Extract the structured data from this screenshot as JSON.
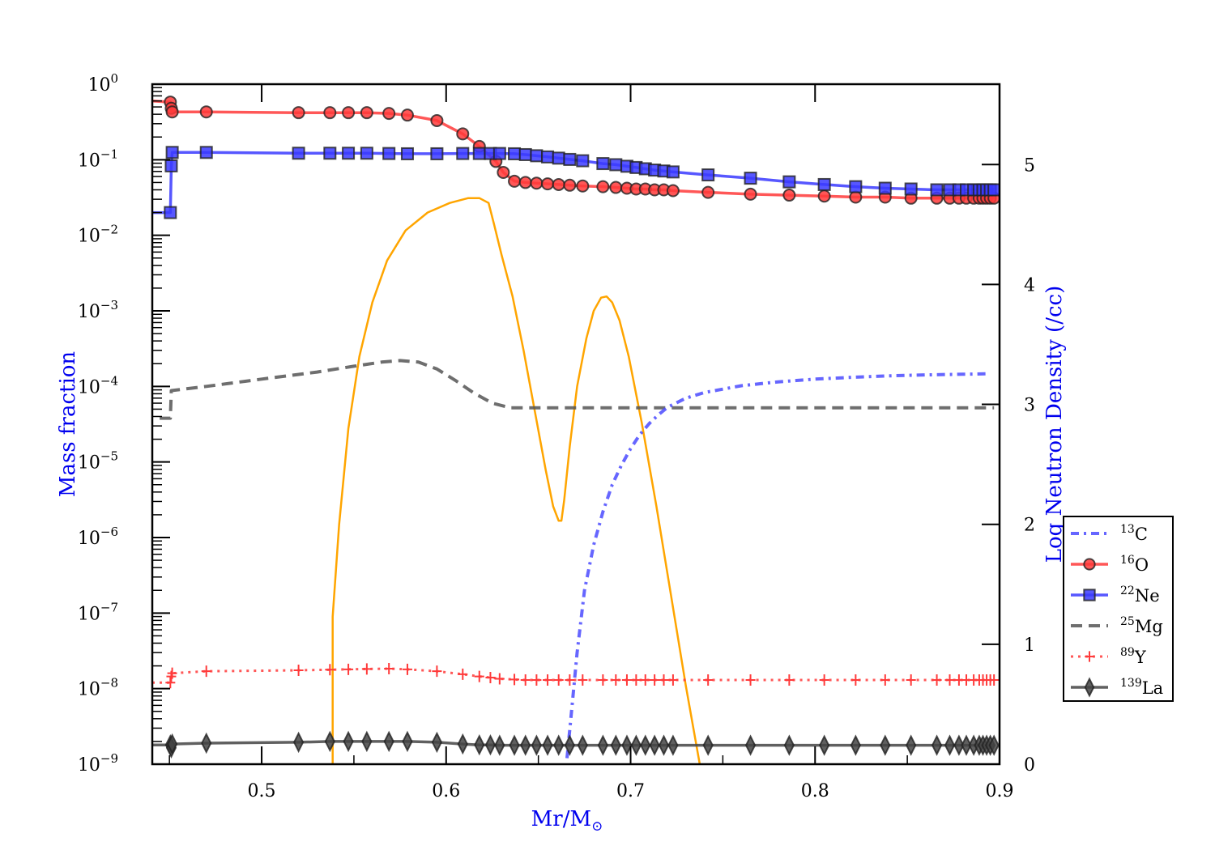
{
  "chart_data": {
    "type": "line",
    "title": "",
    "xlabel": "Mr/M",
    "xlabel_subscript": "⊙",
    "ylabel": "Mass fraction",
    "y2label": "Log Neutron Density (/cc)",
    "xlim": [
      0.4407,
      0.9
    ],
    "ylim": [
      1e-09,
      1
    ],
    "yscale": "log",
    "y2lim": [
      0,
      5.67
    ],
    "grid": false,
    "legend_position": "right",
    "x_ticks": [
      {
        "value": 0.5,
        "label": "0.5"
      },
      {
        "value": 0.6,
        "label": "0.6"
      },
      {
        "value": 0.7,
        "label": "0.7"
      },
      {
        "value": 0.8,
        "label": "0.8"
      },
      {
        "value": 0.9,
        "label": "0.9"
      }
    ],
    "y_ticks": [
      {
        "exp": 0,
        "base": "10",
        "sup": "0"
      },
      {
        "exp": -1,
        "base": "10",
        "sup": "−1"
      },
      {
        "exp": -2,
        "base": "10",
        "sup": "−2"
      },
      {
        "exp": -3,
        "base": "10",
        "sup": "−3"
      },
      {
        "exp": -4,
        "base": "10",
        "sup": "−4"
      },
      {
        "exp": -5,
        "base": "10",
        "sup": "−5"
      },
      {
        "exp": -6,
        "base": "10",
        "sup": "−6"
      },
      {
        "exp": -7,
        "base": "10",
        "sup": "−7"
      },
      {
        "exp": -8,
        "base": "10",
        "sup": "−8"
      },
      {
        "exp": -9,
        "base": "10",
        "sup": "−9"
      }
    ],
    "y2_ticks": [
      {
        "value": 0,
        "label": "0"
      },
      {
        "value": 1,
        "label": "1"
      },
      {
        "value": 2,
        "label": "2"
      },
      {
        "value": 3,
        "label": "3"
      },
      {
        "value": 4,
        "label": "4"
      },
      {
        "value": 5,
        "label": "5"
      }
    ],
    "series": [
      {
        "name": "13C",
        "mass": "13",
        "element": "C",
        "color": "#4b4bff",
        "style": "dashdot",
        "marker": "none",
        "axis": "left",
        "x": [
          0.6655,
          0.668,
          0.671,
          0.675,
          0.68,
          0.685,
          0.69,
          0.695,
          0.7,
          0.705,
          0.71,
          0.715,
          0.72,
          0.73,
          0.74,
          0.76,
          0.78,
          0.8,
          0.82,
          0.84,
          0.86,
          0.88,
          0.895
        ],
        "y": [
          1.2e-09,
          5e-09,
          3e-08,
          2e-07,
          8e-07,
          2.2e-06,
          5e-06,
          9e-06,
          1.5e-05,
          2.3e-05,
          3.2e-05,
          4.2e-05,
          5.3e-05,
          7e-05,
          8.3e-05,
          0.000102,
          0.000115,
          0.000125,
          0.000132,
          0.000138,
          0.000142,
          0.000145,
          0.000147
        ]
      },
      {
        "name": "16O",
        "mass": "16",
        "element": "O",
        "color": "#ff3a3a",
        "style": "solid",
        "marker": "circle",
        "axis": "left",
        "x": [
          0.4407,
          0.4505,
          0.451,
          0.4515,
          0.47,
          0.52,
          0.537,
          0.547,
          0.557,
          0.569,
          0.579,
          0.595,
          0.609,
          0.618,
          0.627,
          0.631,
          0.637,
          0.643,
          0.649,
          0.655,
          0.661,
          0.667,
          0.674,
          0.685,
          0.692,
          0.698,
          0.703,
          0.708,
          0.713,
          0.718,
          0.723,
          0.742,
          0.765,
          0.786,
          0.805,
          0.822,
          0.838,
          0.852,
          0.866,
          0.873,
          0.878,
          0.882,
          0.886,
          0.889,
          0.891,
          0.893,
          0.895,
          0.897
        ],
        "y": [
          0.6,
          0.58,
          0.48,
          0.43,
          0.43,
          0.42,
          0.42,
          0.42,
          0.42,
          0.41,
          0.39,
          0.33,
          0.22,
          0.15,
          0.095,
          0.068,
          0.052,
          0.05,
          0.049,
          0.048,
          0.047,
          0.046,
          0.045,
          0.044,
          0.043,
          0.042,
          0.041,
          0.041,
          0.04,
          0.04,
          0.039,
          0.037,
          0.035,
          0.034,
          0.033,
          0.032,
          0.032,
          0.031,
          0.031,
          0.031,
          0.031,
          0.031,
          0.031,
          0.031,
          0.031,
          0.031,
          0.031,
          0.031
        ]
      },
      {
        "name": "22Ne",
        "mass": "22",
        "element": "Ne",
        "color": "#3a3aff",
        "style": "solid",
        "marker": "square",
        "axis": "left",
        "x": [
          0.4407,
          0.4505,
          0.451,
          0.4515,
          0.47,
          0.52,
          0.537,
          0.547,
          0.557,
          0.569,
          0.579,
          0.595,
          0.609,
          0.618,
          0.624,
          0.629,
          0.637,
          0.643,
          0.649,
          0.655,
          0.661,
          0.667,
          0.674,
          0.685,
          0.692,
          0.698,
          0.703,
          0.708,
          0.713,
          0.718,
          0.723,
          0.742,
          0.765,
          0.786,
          0.805,
          0.822,
          0.838,
          0.852,
          0.866,
          0.873,
          0.878,
          0.882,
          0.886,
          0.889,
          0.891,
          0.893,
          0.895,
          0.897
        ],
        "y": [
          0.02,
          0.02,
          0.083,
          0.125,
          0.125,
          0.122,
          0.122,
          0.122,
          0.122,
          0.121,
          0.12,
          0.12,
          0.121,
          0.121,
          0.121,
          0.121,
          0.12,
          0.117,
          0.113,
          0.109,
          0.105,
          0.101,
          0.097,
          0.089,
          0.086,
          0.082,
          0.079,
          0.076,
          0.073,
          0.071,
          0.069,
          0.063,
          0.057,
          0.051,
          0.047,
          0.044,
          0.042,
          0.041,
          0.04,
          0.04,
          0.04,
          0.04,
          0.04,
          0.04,
          0.04,
          0.04,
          0.04,
          0.04
        ]
      },
      {
        "name": "25Mg",
        "mass": "25",
        "element": "Mg",
        "color": "#555555",
        "style": "dashed",
        "marker": "none",
        "axis": "left",
        "x": [
          0.4447,
          0.4505,
          0.451,
          0.47,
          0.5,
          0.53,
          0.55,
          0.565,
          0.575,
          0.585,
          0.595,
          0.605,
          0.615,
          0.625,
          0.635,
          0.65,
          0.7,
          0.75,
          0.8,
          0.85,
          0.897
        ],
        "y": [
          3.8e-05,
          3.8e-05,
          8.8e-05,
          0.0001,
          0.000125,
          0.000155,
          0.000185,
          0.00021,
          0.00022,
          0.00021,
          0.00017,
          0.00012,
          8.2e-05,
          6e-05,
          5.2e-05,
          5.2e-05,
          5.2e-05,
          5.2e-05,
          5.2e-05,
          5.2e-05,
          5.2e-05
        ]
      },
      {
        "name": "89Y",
        "mass": "89",
        "element": "Y",
        "color": "#ff3a3a",
        "style": "dotted",
        "marker": "plus",
        "axis": "left",
        "x": [
          0.4407,
          0.4505,
          0.451,
          0.4515,
          0.47,
          0.52,
          0.537,
          0.547,
          0.557,
          0.569,
          0.579,
          0.595,
          0.609,
          0.618,
          0.624,
          0.629,
          0.637,
          0.643,
          0.649,
          0.655,
          0.661,
          0.667,
          0.674,
          0.685,
          0.692,
          0.698,
          0.703,
          0.708,
          0.713,
          0.718,
          0.723,
          0.742,
          0.765,
          0.786,
          0.805,
          0.822,
          0.838,
          0.852,
          0.866,
          0.873,
          0.878,
          0.882,
          0.886,
          0.889,
          0.891,
          0.893,
          0.895,
          0.897
        ],
        "y": [
          1.2e-08,
          1.2e-08,
          1.45e-08,
          1.6e-08,
          1.7e-08,
          1.75e-08,
          1.78e-08,
          1.8e-08,
          1.82e-08,
          1.84e-08,
          1.8e-08,
          1.7e-08,
          1.55e-08,
          1.45e-08,
          1.4e-08,
          1.35e-08,
          1.32e-08,
          1.3e-08,
          1.3e-08,
          1.3e-08,
          1.3e-08,
          1.3e-08,
          1.3e-08,
          1.3e-08,
          1.3e-08,
          1.3e-08,
          1.3e-08,
          1.3e-08,
          1.3e-08,
          1.3e-08,
          1.3e-08,
          1.3e-08,
          1.3e-08,
          1.3e-08,
          1.3e-08,
          1.3e-08,
          1.3e-08,
          1.3e-08,
          1.3e-08,
          1.3e-08,
          1.3e-08,
          1.3e-08,
          1.3e-08,
          1.3e-08,
          1.3e-08,
          1.3e-08,
          1.3e-08,
          1.3e-08
        ]
      },
      {
        "name": "139La",
        "mass": "139",
        "element": "La",
        "color": "#444444",
        "style": "solid",
        "marker": "diamond",
        "axis": "left",
        "x": [
          0.4407,
          0.4505,
          0.451,
          0.4515,
          0.47,
          0.52,
          0.537,
          0.547,
          0.557,
          0.569,
          0.579,
          0.595,
          0.609,
          0.618,
          0.624,
          0.629,
          0.637,
          0.643,
          0.649,
          0.655,
          0.661,
          0.667,
          0.674,
          0.685,
          0.692,
          0.698,
          0.703,
          0.708,
          0.713,
          0.718,
          0.723,
          0.742,
          0.765,
          0.786,
          0.805,
          0.822,
          0.838,
          0.852,
          0.866,
          0.873,
          0.878,
          0.882,
          0.886,
          0.889,
          0.891,
          0.893,
          0.895,
          0.897
        ],
        "y": [
          1.8e-09,
          1.8e-09,
          1.65e-09,
          1.85e-09,
          1.9e-09,
          1.95e-09,
          2e-09,
          2e-09,
          2e-09,
          2e-09,
          2e-09,
          1.95e-09,
          1.85e-09,
          1.8e-09,
          1.8e-09,
          1.78e-09,
          1.78e-09,
          1.78e-09,
          1.78e-09,
          1.78e-09,
          1.78e-09,
          1.78e-09,
          1.78e-09,
          1.78e-09,
          1.78e-09,
          1.78e-09,
          1.78e-09,
          1.78e-09,
          1.78e-09,
          1.78e-09,
          1.78e-09,
          1.78e-09,
          1.78e-09,
          1.78e-09,
          1.78e-09,
          1.78e-09,
          1.78e-09,
          1.78e-09,
          1.78e-09,
          1.78e-09,
          1.78e-09,
          1.78e-09,
          1.78e-09,
          1.78e-09,
          1.78e-09,
          1.78e-09,
          1.78e-09,
          1.78e-09
        ]
      },
      {
        "name": "Log Neutron Density",
        "legend": false,
        "color": "#ffa500",
        "style": "solid",
        "marker": "none",
        "axis": "right",
        "x": [
          0.5385,
          0.5385,
          0.542,
          0.547,
          0.553,
          0.56,
          0.568,
          0.578,
          0.59,
          0.602,
          0.612,
          0.618,
          0.623,
          0.626,
          0.63,
          0.636,
          0.642,
          0.648,
          0.654,
          0.658,
          0.661,
          0.6625,
          0.664,
          0.667,
          0.671,
          0.676,
          0.68,
          0.684,
          0.687,
          0.69,
          0.694,
          0.699,
          0.706,
          0.714,
          0.722,
          0.73,
          0.7375
        ],
        "y": [
          0.0,
          1.23,
          2.0,
          2.8,
          3.4,
          3.85,
          4.2,
          4.45,
          4.6,
          4.68,
          4.72,
          4.72,
          4.68,
          4.5,
          4.25,
          3.9,
          3.45,
          2.95,
          2.45,
          2.15,
          2.03,
          2.03,
          2.2,
          2.65,
          3.15,
          3.55,
          3.78,
          3.89,
          3.9,
          3.85,
          3.7,
          3.4,
          2.85,
          2.15,
          1.4,
          0.65,
          0.0
        ]
      }
    ]
  }
}
